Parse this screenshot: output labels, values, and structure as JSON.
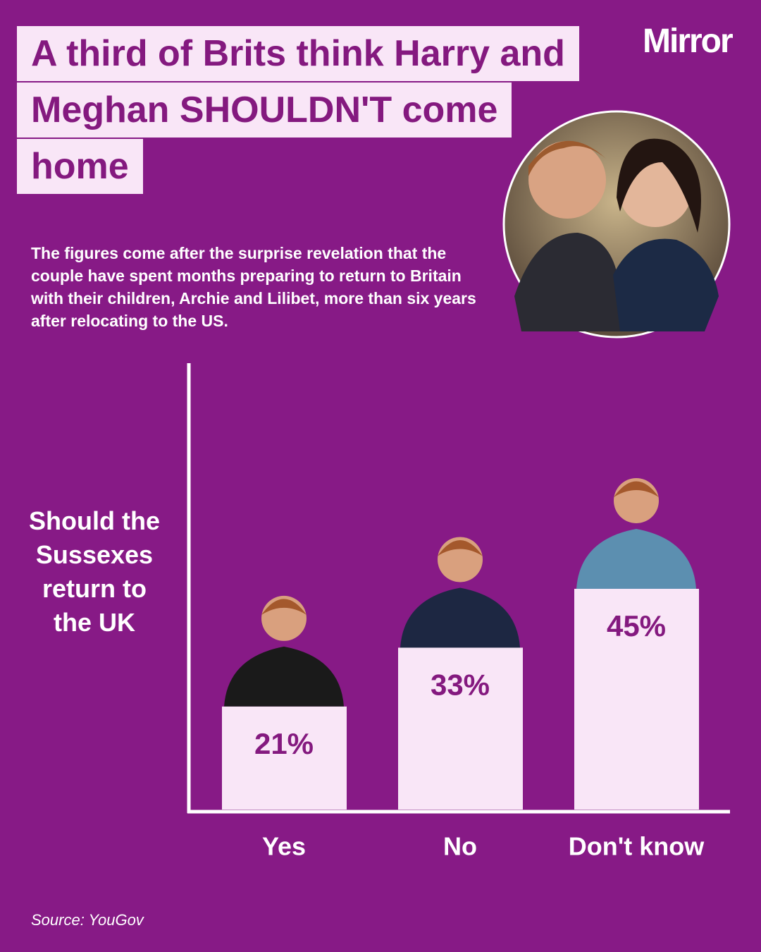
{
  "logo": "Mirror",
  "chart_data": {
    "type": "bar",
    "title": "A third of Brits think Harry and Meghan SHOULDN'T come home",
    "subtitle": "The figures come after the surprise revelation that the couple have spent months preparing to return to Britain with their children, Archie and Lilibet, more than six years after relocating to the US.",
    "y_label": "Should the Sussexes return to the UK",
    "categories": [
      "Yes",
      "No",
      "Don't know"
    ],
    "values": [
      21,
      33,
      45
    ],
    "value_labels": [
      "21%",
      "33%",
      "45%"
    ],
    "color": "#f9e6f7",
    "ylim": [
      0,
      91
    ],
    "source": "Source: YouGov"
  }
}
